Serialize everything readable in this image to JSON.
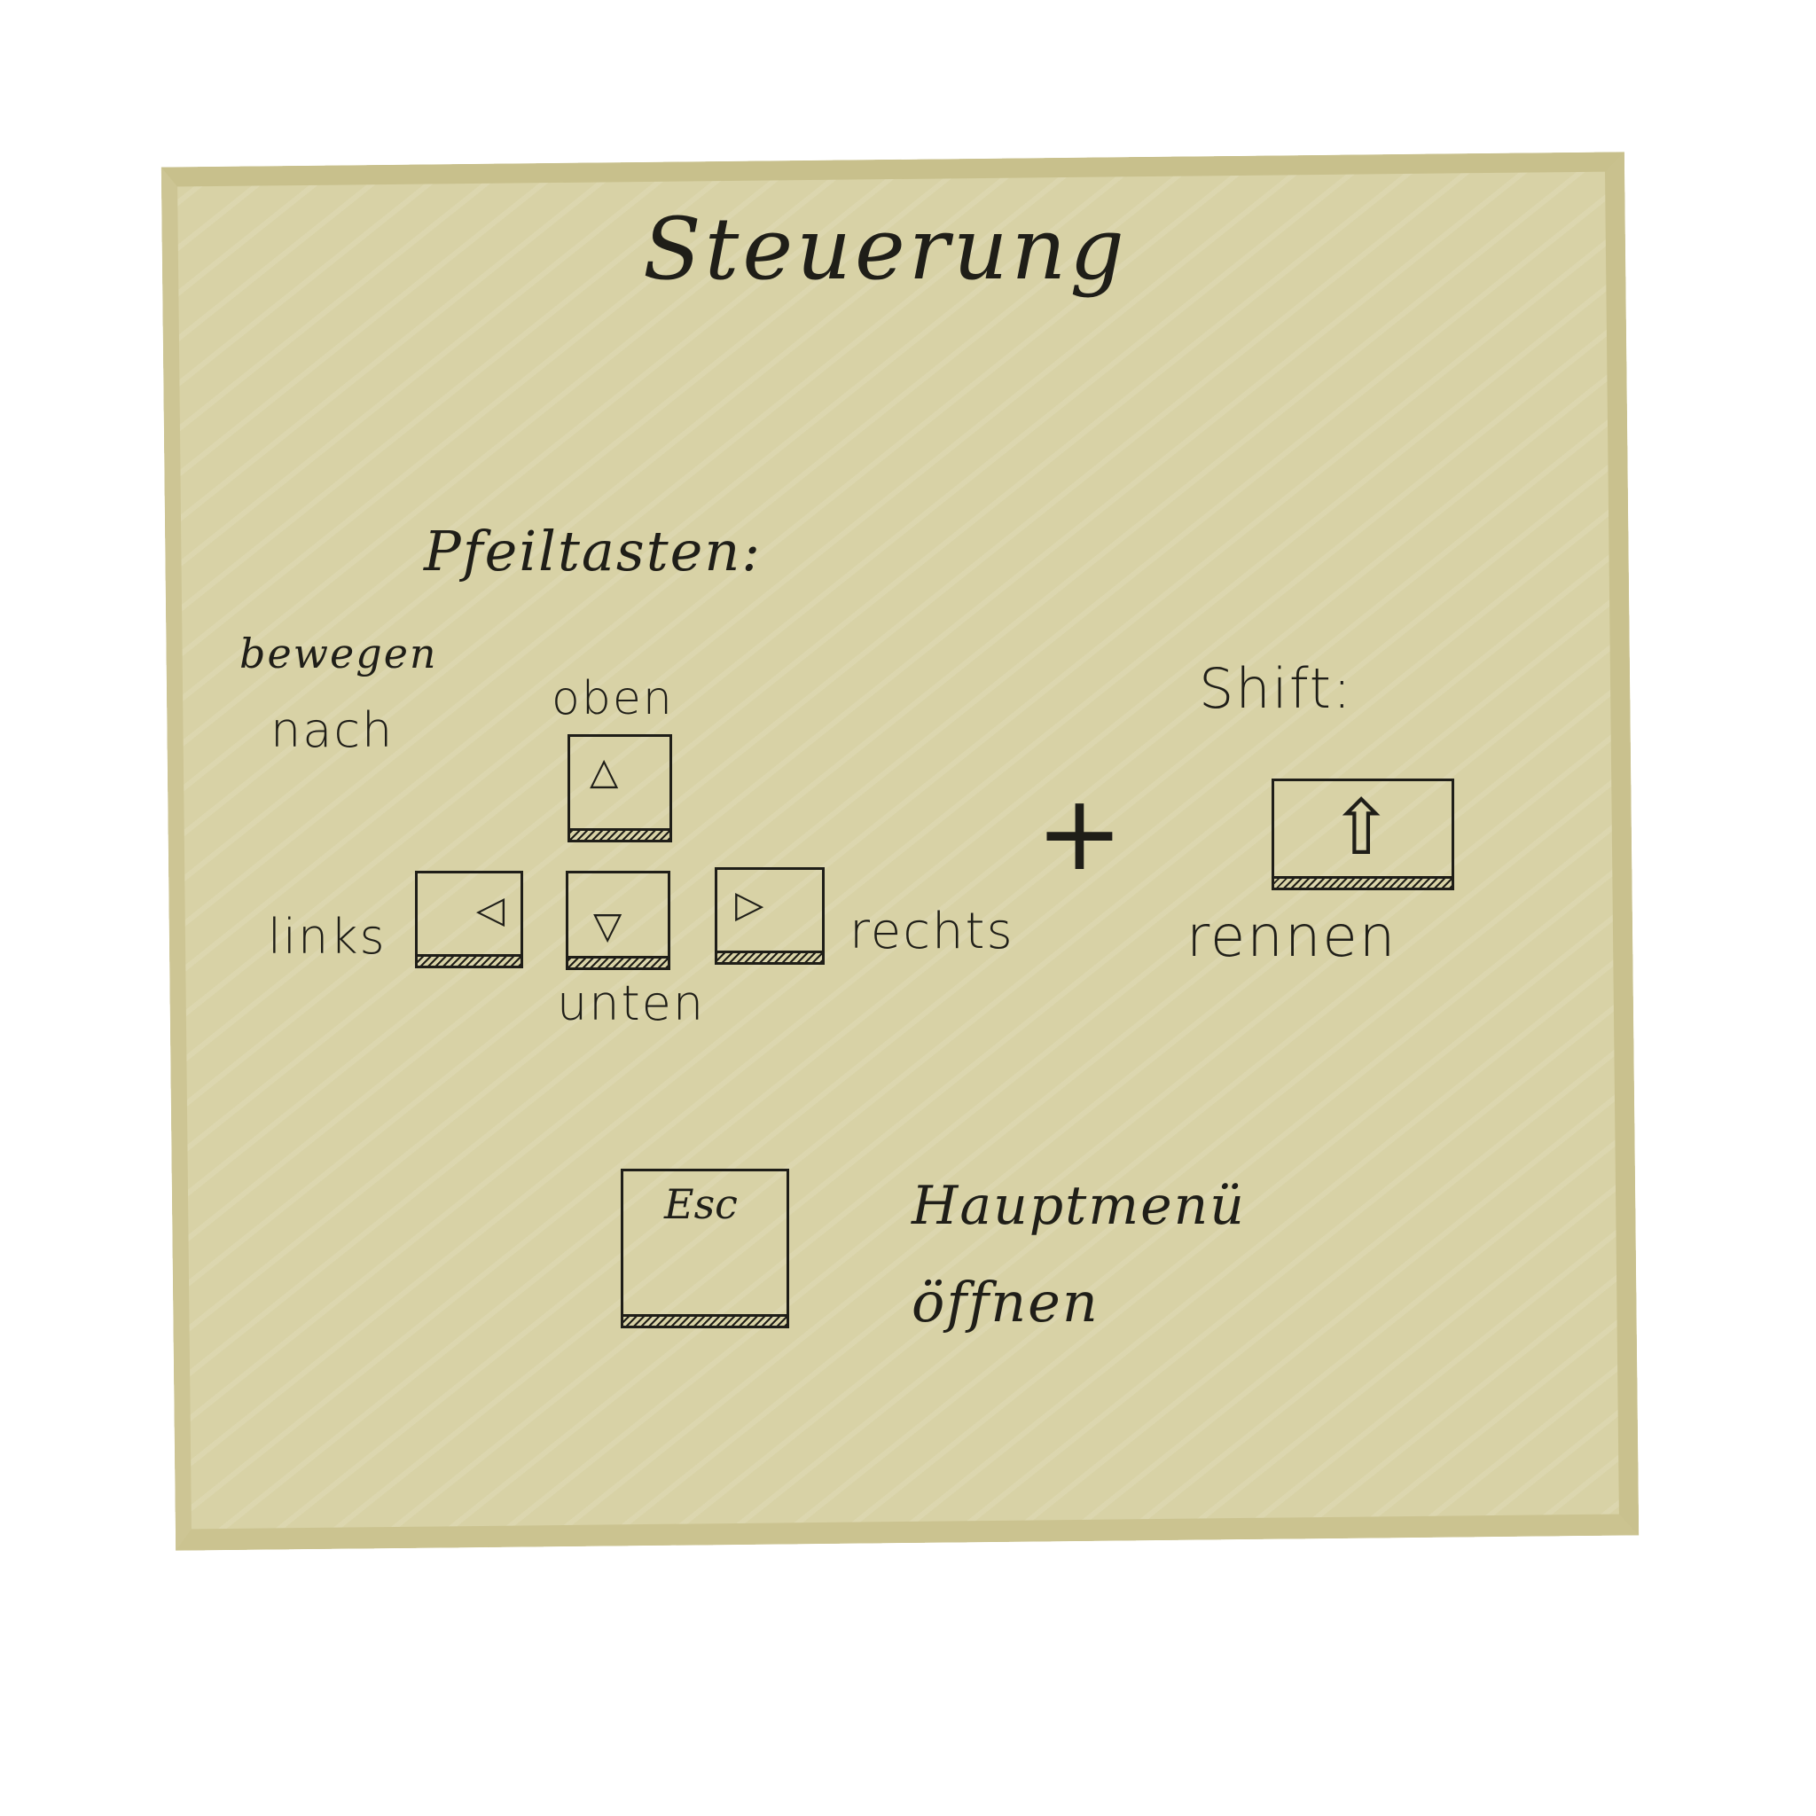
{
  "title": "Steuerung",
  "arrows": {
    "heading": "Pfeiltasten:",
    "move_line1": "bewegen",
    "move_line2": "nach",
    "up": {
      "label": "oben",
      "glyph": "△",
      "icon": "arrow-up-icon"
    },
    "left": {
      "label": "links",
      "glyph": "◁",
      "icon": "arrow-left-icon"
    },
    "down": {
      "label": "unten",
      "glyph": "▽",
      "icon": "arrow-down-icon"
    },
    "right": {
      "label": "rechts",
      "glyph": "▷",
      "icon": "arrow-right-icon"
    }
  },
  "combo": {
    "plus": "+"
  },
  "shift": {
    "heading": "Shift:",
    "glyph": "⇧",
    "icon": "shift-arrow-icon",
    "action": "rennen"
  },
  "esc": {
    "key_label": "Esc",
    "action_line1": "Hauptmenü",
    "action_line2": "öffnen"
  },
  "colors": {
    "paper": "#d8d2a6",
    "ink": "#1f1e18"
  }
}
